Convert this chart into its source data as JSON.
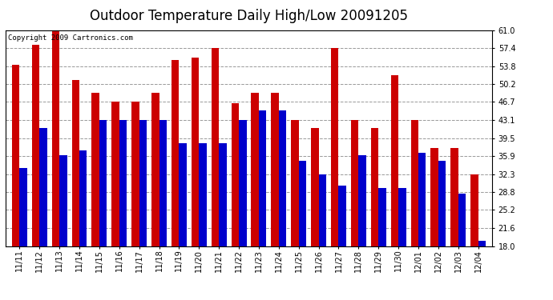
{
  "title": "Outdoor Temperature Daily High/Low 20091205",
  "copyright": "Copyright 2009 Cartronics.com",
  "dates": [
    "11/11",
    "11/12",
    "11/13",
    "11/14",
    "11/15",
    "11/16",
    "11/17",
    "11/18",
    "11/19",
    "11/20",
    "11/21",
    "11/22",
    "11/23",
    "11/24",
    "11/25",
    "11/26",
    "11/27",
    "11/28",
    "11/29",
    "11/30",
    "12/01",
    "12/02",
    "12/03",
    "12/04"
  ],
  "highs": [
    54.0,
    58.0,
    61.0,
    51.0,
    48.5,
    46.7,
    46.7,
    48.5,
    55.0,
    55.5,
    57.4,
    46.5,
    48.5,
    48.5,
    43.1,
    41.5,
    57.4,
    43.1,
    41.5,
    52.0,
    43.1,
    37.5,
    37.5,
    32.3
  ],
  "lows": [
    33.5,
    41.5,
    36.0,
    37.0,
    43.1,
    43.1,
    43.1,
    43.1,
    38.5,
    38.5,
    38.5,
    43.1,
    45.0,
    45.0,
    35.0,
    32.3,
    30.0,
    36.0,
    29.5,
    29.5,
    36.5,
    35.0,
    28.5,
    19.0
  ],
  "high_color": "#cc0000",
  "low_color": "#0000cc",
  "bg_color": "#ffffff",
  "plot_bg_color": "#ffffff",
  "grid_color": "#999999",
  "ylim_min": 18.0,
  "ylim_max": 61.0,
  "yticks": [
    18.0,
    21.6,
    25.2,
    28.8,
    32.3,
    35.9,
    39.5,
    43.1,
    46.7,
    50.2,
    53.8,
    57.4,
    61.0
  ],
  "bar_width": 0.38,
  "title_fontsize": 12,
  "tick_fontsize": 7,
  "copyright_fontsize": 6.5
}
